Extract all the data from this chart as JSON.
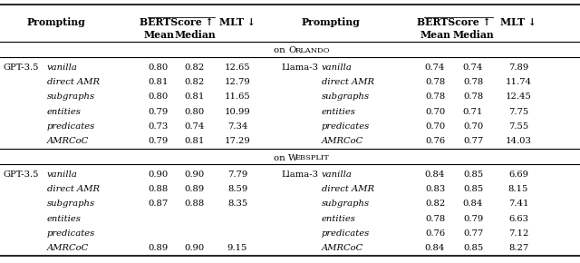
{
  "orlando_gpt": {
    "model": "GPT-3.5",
    "rows": [
      [
        "vanilla",
        "0.80",
        "0.82",
        "12.65"
      ],
      [
        "direct AMR",
        "0.81",
        "0.82",
        "12.79"
      ],
      [
        "subgraphs",
        "0.80",
        "0.81",
        "11.65"
      ],
      [
        "entities",
        "0.79",
        "0.80",
        "10.99"
      ],
      [
        "predicates",
        "0.73",
        "0.74",
        "7.34"
      ],
      [
        "AMRCoC",
        "0.79",
        "0.81",
        "17.29"
      ]
    ]
  },
  "orlando_llama": {
    "model": "Llama-3",
    "rows": [
      [
        "vanilla",
        "0.74",
        "0.74",
        "7.89"
      ],
      [
        "direct AMR",
        "0.78",
        "0.78",
        "11.74"
      ],
      [
        "subgraphs",
        "0.78",
        "0.78",
        "12.45"
      ],
      [
        "entities",
        "0.70",
        "0.71",
        "7.75"
      ],
      [
        "predicates",
        "0.70",
        "0.70",
        "7.55"
      ],
      [
        "AMRCoC",
        "0.76",
        "0.77",
        "14.03"
      ]
    ]
  },
  "websplit_gpt": {
    "model": "GPT-3.5",
    "rows": [
      [
        "vanilla",
        "0.90",
        "0.90",
        "7.79"
      ],
      [
        "direct AMR",
        "0.88",
        "0.89",
        "8.59"
      ],
      [
        "subgraphs",
        "0.87",
        "0.88",
        "8.35"
      ],
      [
        "entities",
        "",
        "",
        ""
      ],
      [
        "predicates",
        "",
        "",
        ""
      ],
      [
        "AMRCoC",
        "0.89",
        "0.90",
        "9.15"
      ]
    ]
  },
  "websplit_llama": {
    "model": "Llama-3",
    "rows": [
      [
        "vanilla",
        "0.84",
        "0.85",
        "6.69"
      ],
      [
        "direct AMR",
        "0.83",
        "0.85",
        "8.15"
      ],
      [
        "subgraphs",
        "0.82",
        "0.84",
        "7.41"
      ],
      [
        "entities",
        "0.78",
        "0.79",
        "6.63"
      ],
      [
        "predicates",
        "0.76",
        "0.77",
        "7.12"
      ],
      [
        "AMRCoC",
        "0.84",
        "0.85",
        "8.27"
      ]
    ]
  },
  "fs_header": 7.8,
  "fs_data": 7.2,
  "fs_section": 7.4,
  "fs_model": 7.2
}
